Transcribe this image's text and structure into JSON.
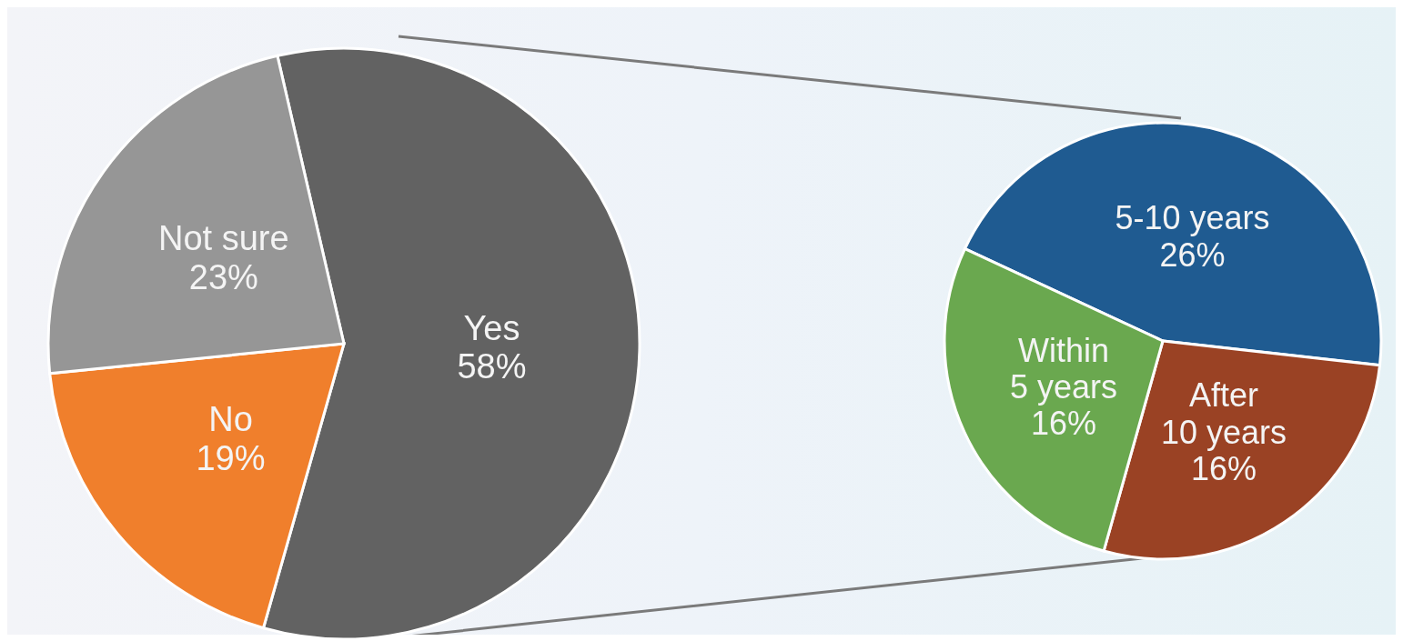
{
  "chart_data": [
    {
      "type": "pie",
      "categories": [
        "Yes",
        "No",
        "Not sure"
      ],
      "values": [
        58,
        19,
        23
      ],
      "colors": [
        "#626262",
        "#f07f2c",
        "#969696"
      ],
      "value_labels": [
        "58%",
        "19%",
        "23%"
      ]
    },
    {
      "type": "pie",
      "categories": [
        "5-10 years",
        "After 10 years",
        "Within 5 years"
      ],
      "values": [
        26,
        16,
        16
      ],
      "colors": [
        "#1f5b91",
        "#9a4224",
        "#6aa84f"
      ],
      "value_labels": [
        "26%",
        "16%",
        "16%"
      ]
    }
  ]
}
